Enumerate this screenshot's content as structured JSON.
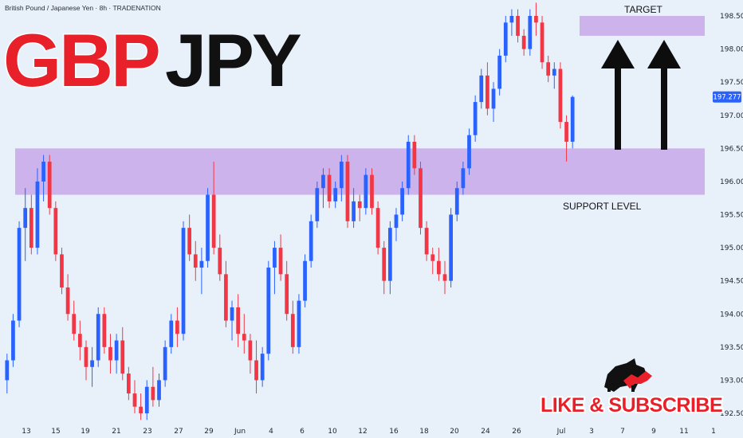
{
  "header": {
    "symbol_info": "British Pound / Japanese Yen · 8h · TRADENATION",
    "big_title_part1": "GBP",
    "big_title_part2": "JPY"
  },
  "annotations": {
    "target_label": "TARGET",
    "support_label": "SUPPORT LEVEL",
    "cta": "LIKE & SUBSCRIBE"
  },
  "colors": {
    "background": "#e8f0fa",
    "up_candle": "#2962ff",
    "down_candle": "#f23645",
    "zone": "#c8a8e8",
    "title_red": "#e8202a",
    "title_black": "#111111",
    "price_badge": "#2962ff"
  },
  "icons": [
    "bull-bear-logo-icon",
    "arrow-up-icon"
  ],
  "chart_data": {
    "type": "candlestick",
    "ylim": [
      192.4,
      198.7
    ],
    "current_price": "197.277",
    "y_ticks": [
      "198.500",
      "198.000",
      "197.500",
      "197.000",
      "196.500",
      "196.000",
      "195.500",
      "195.000",
      "194.500",
      "194.000",
      "193.500",
      "193.000",
      "192.500"
    ],
    "x_ticks": [
      "13",
      "15",
      "19",
      "21",
      "23",
      "27",
      "29",
      "Jun",
      "4",
      "6",
      "10",
      "12",
      "16",
      "18",
      "20",
      "24",
      "26",
      "Jul",
      "3",
      "7",
      "9",
      "11",
      "1"
    ],
    "zones": [
      {
        "label": "TARGET",
        "low": 198.2,
        "high": 198.5
      },
      {
        "label": "SUPPORT LEVEL",
        "low": 195.8,
        "high": 196.5
      }
    ],
    "candles": [
      [
        193.0,
        193.4,
        192.8,
        193.3
      ],
      [
        193.3,
        194.0,
        193.2,
        193.9
      ],
      [
        193.9,
        195.4,
        193.8,
        195.3
      ],
      [
        195.3,
        195.9,
        194.8,
        195.6
      ],
      [
        195.6,
        195.8,
        194.9,
        195.0
      ],
      [
        195.0,
        196.2,
        194.9,
        196.0
      ],
      [
        196.0,
        196.4,
        195.7,
        196.3
      ],
      [
        196.3,
        196.4,
        195.5,
        195.6
      ],
      [
        195.6,
        195.7,
        194.8,
        194.9
      ],
      [
        194.9,
        195.0,
        194.3,
        194.4
      ],
      [
        194.4,
        194.6,
        193.9,
        194.0
      ],
      [
        194.0,
        194.2,
        193.6,
        193.7
      ],
      [
        193.7,
        193.9,
        193.3,
        193.5
      ],
      [
        193.5,
        193.6,
        193.0,
        193.2
      ],
      [
        193.2,
        193.5,
        192.9,
        193.3
      ],
      [
        193.3,
        194.1,
        193.2,
        194.0
      ],
      [
        194.0,
        194.1,
        193.4,
        193.5
      ],
      [
        193.5,
        193.7,
        193.1,
        193.3
      ],
      [
        193.3,
        193.7,
        193.1,
        193.6
      ],
      [
        193.6,
        193.8,
        193.0,
        193.1
      ],
      [
        193.1,
        193.2,
        192.7,
        192.8
      ],
      [
        192.8,
        193.0,
        192.5,
        192.6
      ],
      [
        192.6,
        192.8,
        192.4,
        192.5
      ],
      [
        192.5,
        193.0,
        192.4,
        192.9
      ],
      [
        192.9,
        193.2,
        192.6,
        192.7
      ],
      [
        192.7,
        193.1,
        192.6,
        193.0
      ],
      [
        193.0,
        193.6,
        192.9,
        193.5
      ],
      [
        193.5,
        194.0,
        193.4,
        193.9
      ],
      [
        193.9,
        194.1,
        193.5,
        193.7
      ],
      [
        193.7,
        195.4,
        193.6,
        195.3
      ],
      [
        195.3,
        195.5,
        194.8,
        194.9
      ],
      [
        194.9,
        195.1,
        194.5,
        194.7
      ],
      [
        194.7,
        195.0,
        194.3,
        194.8
      ],
      [
        194.8,
        195.9,
        194.7,
        195.8
      ],
      [
        195.8,
        196.3,
        194.9,
        195.0
      ],
      [
        195.0,
        195.2,
        194.5,
        194.6
      ],
      [
        194.6,
        194.8,
        193.8,
        193.9
      ],
      [
        193.9,
        194.2,
        193.6,
        194.1
      ],
      [
        194.1,
        194.3,
        193.5,
        193.7
      ],
      [
        193.7,
        194.0,
        193.4,
        193.6
      ],
      [
        193.6,
        193.7,
        193.1,
        193.3
      ],
      [
        193.3,
        193.6,
        192.8,
        193.0
      ],
      [
        193.0,
        193.5,
        192.9,
        193.4
      ],
      [
        193.4,
        194.8,
        193.3,
        194.7
      ],
      [
        194.7,
        195.1,
        194.3,
        195.0
      ],
      [
        195.0,
        195.2,
        194.5,
        194.6
      ],
      [
        194.6,
        194.8,
        193.9,
        194.0
      ],
      [
        194.0,
        194.2,
        193.4,
        193.5
      ],
      [
        193.5,
        194.3,
        193.4,
        194.2
      ],
      [
        194.2,
        194.9,
        194.1,
        194.8
      ],
      [
        194.8,
        195.5,
        194.7,
        195.4
      ],
      [
        195.4,
        196.0,
        195.3,
        195.9
      ],
      [
        195.9,
        196.2,
        195.6,
        196.1
      ],
      [
        196.1,
        196.2,
        195.6,
        195.7
      ],
      [
        195.7,
        196.0,
        195.6,
        195.9
      ],
      [
        195.9,
        196.4,
        195.7,
        196.3
      ],
      [
        196.3,
        196.4,
        195.3,
        195.4
      ],
      [
        195.4,
        195.9,
        195.3,
        195.7
      ],
      [
        195.7,
        195.8,
        195.4,
        195.6
      ],
      [
        195.6,
        196.2,
        195.5,
        196.1
      ],
      [
        196.1,
        196.2,
        195.5,
        195.6
      ],
      [
        195.6,
        195.7,
        194.9,
        195.0
      ],
      [
        195.0,
        195.1,
        194.3,
        194.5
      ],
      [
        194.5,
        195.4,
        194.3,
        195.3
      ],
      [
        195.3,
        195.6,
        195.1,
        195.5
      ],
      [
        195.5,
        196.0,
        195.4,
        195.9
      ],
      [
        195.9,
        196.7,
        195.8,
        196.6
      ],
      [
        196.6,
        196.7,
        196.1,
        196.2
      ],
      [
        196.2,
        196.3,
        195.2,
        195.3
      ],
      [
        195.3,
        195.4,
        194.8,
        194.9
      ],
      [
        194.9,
        195.0,
        194.6,
        194.8
      ],
      [
        194.8,
        195.0,
        194.5,
        194.6
      ],
      [
        194.6,
        194.8,
        194.3,
        194.5
      ],
      [
        194.5,
        195.6,
        194.4,
        195.5
      ],
      [
        195.5,
        196.0,
        195.4,
        195.9
      ],
      [
        195.9,
        196.3,
        195.8,
        196.2
      ],
      [
        196.2,
        196.8,
        196.1,
        196.7
      ],
      [
        196.7,
        197.3,
        196.6,
        197.2
      ],
      [
        197.2,
        197.7,
        197.1,
        197.6
      ],
      [
        197.6,
        197.8,
        197.0,
        197.1
      ],
      [
        197.1,
        197.5,
        196.9,
        197.4
      ],
      [
        197.4,
        198.0,
        197.3,
        197.9
      ],
      [
        197.9,
        198.5,
        197.8,
        198.4
      ],
      [
        198.4,
        198.6,
        198.2,
        198.5
      ],
      [
        198.5,
        198.6,
        198.1,
        198.2
      ],
      [
        198.2,
        198.3,
        197.9,
        198.0
      ],
      [
        198.0,
        198.6,
        197.9,
        198.5
      ],
      [
        198.5,
        198.7,
        198.2,
        198.4
      ],
      [
        198.4,
        198.5,
        197.7,
        197.8
      ],
      [
        197.8,
        197.9,
        197.5,
        197.6
      ],
      [
        197.6,
        197.8,
        197.4,
        197.7
      ],
      [
        197.7,
        197.8,
        196.8,
        196.9
      ],
      [
        196.9,
        197.0,
        196.3,
        196.6
      ],
      [
        196.6,
        197.3,
        196.5,
        197.277
      ]
    ]
  }
}
